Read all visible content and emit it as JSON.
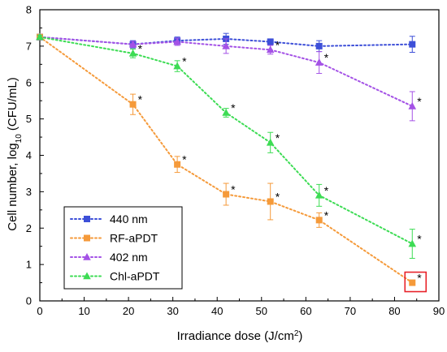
{
  "chart_data": {
    "type": "line",
    "title": "",
    "xlabel": "Irradiance dose (J/cm²)",
    "xlabel_parts": {
      "main": "Irradiance dose (J/cm",
      "sup": "2",
      "tail": ")"
    },
    "ylabel": "Cell number, log10 (CFU/mL)",
    "ylabel_parts": {
      "main": "Cell number, log",
      "sub": "10",
      "tail": " (CFU/mL)"
    },
    "xlim": [
      0,
      90
    ],
    "ylim": [
      0,
      8
    ],
    "xticks": [
      "0",
      "10",
      "20",
      "30",
      "40",
      "50",
      "60",
      "70",
      "80",
      "90"
    ],
    "yticks": [
      "0",
      "1",
      "2",
      "3",
      "4",
      "5",
      "6",
      "7",
      "8"
    ],
    "grid": false,
    "legend_position": "bottom-left",
    "significance_marker": "*",
    "highlight": {
      "series": "RF-aPDT",
      "x": 84
    },
    "series": [
      {
        "name": "440 nm",
        "color": "#3d4fd8",
        "marker": "square",
        "x": [
          0,
          21,
          31,
          42,
          52,
          63,
          84
        ],
        "y": [
          7.25,
          7.05,
          7.15,
          7.2,
          7.12,
          7.0,
          7.05
        ],
        "err": [
          0.08,
          0.1,
          0.1,
          0.15,
          0.08,
          0.15,
          0.22
        ],
        "significant": [
          false,
          false,
          false,
          false,
          false,
          false,
          false
        ]
      },
      {
        "name": "RF-aPDT",
        "color": "#f59a3a",
        "marker": "square",
        "x": [
          0,
          21,
          31,
          42,
          52,
          63,
          84
        ],
        "y": [
          7.25,
          5.4,
          3.75,
          2.93,
          2.73,
          2.22,
          0.5
        ],
        "err": [
          0.05,
          0.28,
          0.22,
          0.3,
          0.5,
          0.2,
          0.05
        ],
        "significant": [
          false,
          true,
          true,
          true,
          true,
          true,
          true
        ]
      },
      {
        "name": "402 nm",
        "color": "#a452e6",
        "marker": "triangle-up",
        "x": [
          0,
          21,
          31,
          42,
          52,
          63,
          84
        ],
        "y": [
          7.25,
          7.05,
          7.12,
          7.0,
          6.9,
          6.55,
          5.35
        ],
        "err": [
          0.05,
          0.08,
          0.1,
          0.2,
          0.12,
          0.3,
          0.4
        ],
        "significant": [
          false,
          false,
          false,
          false,
          true,
          true,
          true
        ]
      },
      {
        "name": "Chl-aPDT",
        "color": "#3ddc54",
        "marker": "triangle-up",
        "x": [
          0,
          21,
          31,
          42,
          52,
          63,
          84
        ],
        "y": [
          7.25,
          6.8,
          6.45,
          5.17,
          4.35,
          2.9,
          1.57
        ],
        "err": [
          0.05,
          0.12,
          0.15,
          0.12,
          0.28,
          0.3,
          0.4
        ],
        "significant": [
          false,
          true,
          true,
          true,
          true,
          true,
          true
        ]
      }
    ]
  }
}
